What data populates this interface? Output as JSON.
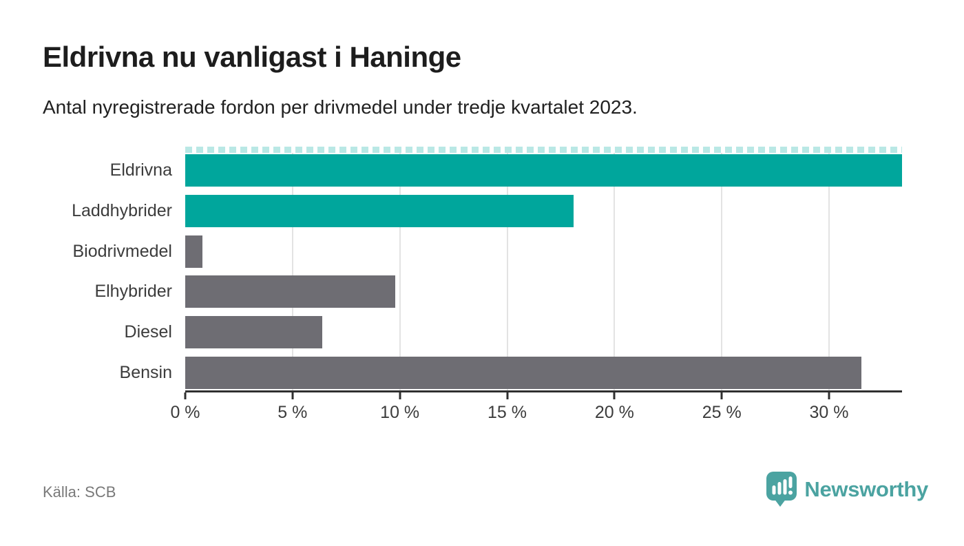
{
  "header": {
    "title": "Eldrivna nu vanligast i Haninge",
    "subtitle": "Antal nyregistrerade fordon per drivmedel under tredje kvartalet 2023."
  },
  "chart_data": {
    "type": "bar",
    "orientation": "horizontal",
    "title": "Eldrivna nu vanligast i Haninge",
    "subtitle": "Antal nyregistrerade fordon per drivmedel under tredje kvartalet 2023.",
    "categories": [
      "Eldrivna",
      "Laddhybrider",
      "Biodrivmedel",
      "Elhybrider",
      "Diesel",
      "Bensin"
    ],
    "values": [
      33.4,
      18.1,
      0.8,
      9.8,
      6.4,
      31.5
    ],
    "unit": "%",
    "xlim": [
      0,
      33.4
    ],
    "ticks": [
      0,
      5,
      10,
      15,
      20,
      25,
      30
    ],
    "tick_labels": [
      "0 %",
      "5 %",
      "10 %",
      "15 %",
      "20 %",
      "25 %",
      "30 %"
    ],
    "grid": true,
    "legend": false,
    "bar_colors": [
      "#00A69C",
      "#00A69C",
      "#6E6D73",
      "#6E6D73",
      "#6E6D73",
      "#6E6D73"
    ],
    "highlight_color": "#00A69C",
    "default_color": "#6E6D73",
    "grid_color": "#E3E3E3",
    "axis_color": "#2F2F2F",
    "max_bar_clipped": true,
    "clip_strip_color": "#B9E8E5"
  },
  "footer": {
    "source": "Källa: SCB",
    "brand_name": "Newsworthy",
    "brand_color": "#4BA3A1"
  }
}
